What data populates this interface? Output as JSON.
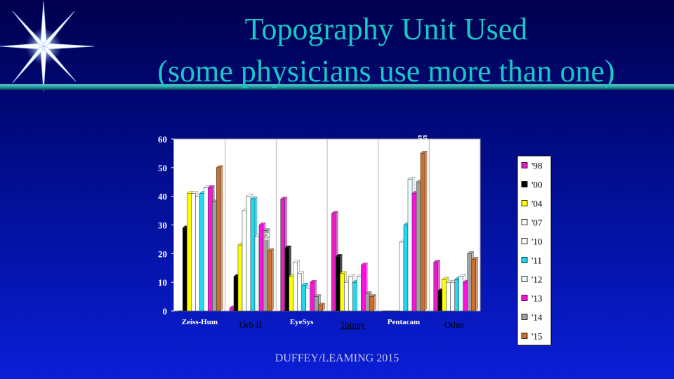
{
  "slide": {
    "title_line1": "Topography Unit Used",
    "title_line2": "(some physicians use more than one)",
    "footer": "DUFFEY/LEAMING 2015",
    "colors": {
      "title": "#19c7c7",
      "background_top": "#00004d",
      "background_bottom": "#0a1ed6"
    }
  },
  "chart_data": {
    "type": "bar",
    "title": "",
    "xlabel": "",
    "ylabel": "",
    "ylim": [
      0,
      60
    ],
    "yticks": [
      0,
      10,
      20,
      30,
      40,
      50,
      60
    ],
    "grid": false,
    "legend_position": "right",
    "categories": [
      "Zeiss-Hum",
      "Orb II",
      "EyeSys",
      "Tomey",
      "Pentacam",
      "Other"
    ],
    "series": [
      {
        "name": "'98",
        "color": "#e020c0",
        "values": [
          0,
          1,
          39,
          34,
          0,
          17
        ]
      },
      {
        "name": "'00",
        "color": "#000000",
        "values": [
          29,
          12,
          22,
          19,
          0,
          7
        ]
      },
      {
        "name": "'04",
        "color": "#ffff00",
        "values": [
          41,
          23,
          12,
          13,
          0,
          11
        ]
      },
      {
        "name": "'07",
        "color": "#ffffff",
        "values": [
          41,
          35,
          17,
          10,
          0,
          10
        ]
      },
      {
        "name": "'10",
        "color": "#ffffff",
        "values": [
          40,
          40,
          13,
          12,
          24,
          10
        ]
      },
      {
        "name": "'11",
        "color": "#20d8f0",
        "values": [
          41,
          39,
          9,
          10,
          30,
          11
        ]
      },
      {
        "name": "'12",
        "color": "#e8ffff",
        "values": [
          43,
          26,
          8,
          12,
          46,
          12
        ]
      },
      {
        "name": "'13",
        "color": "#ff10e0",
        "values": [
          43,
          30,
          10,
          16,
          41,
          10
        ]
      },
      {
        "name": "'14",
        "color": "#a0a0a0",
        "values": [
          38,
          28,
          5,
          6,
          45,
          20
        ]
      },
      {
        "name": "'15",
        "color": "#c87030",
        "values": [
          50,
          21,
          2,
          5,
          55,
          18
        ]
      }
    ],
    "data_labels": [
      {
        "category": "Zeiss-Hum",
        "series": "'15",
        "text": "50"
      },
      {
        "category": "Orb II",
        "series": "'15",
        "text": "21"
      },
      {
        "category": "EyeSys",
        "series": "'15",
        "text": "2"
      },
      {
        "category": "Tomey",
        "series": "'15",
        "text": "5"
      },
      {
        "category": "Pentacam",
        "series": "'15",
        "text": "55"
      },
      {
        "category": "Other",
        "series": "'15",
        "text": "18"
      }
    ]
  }
}
